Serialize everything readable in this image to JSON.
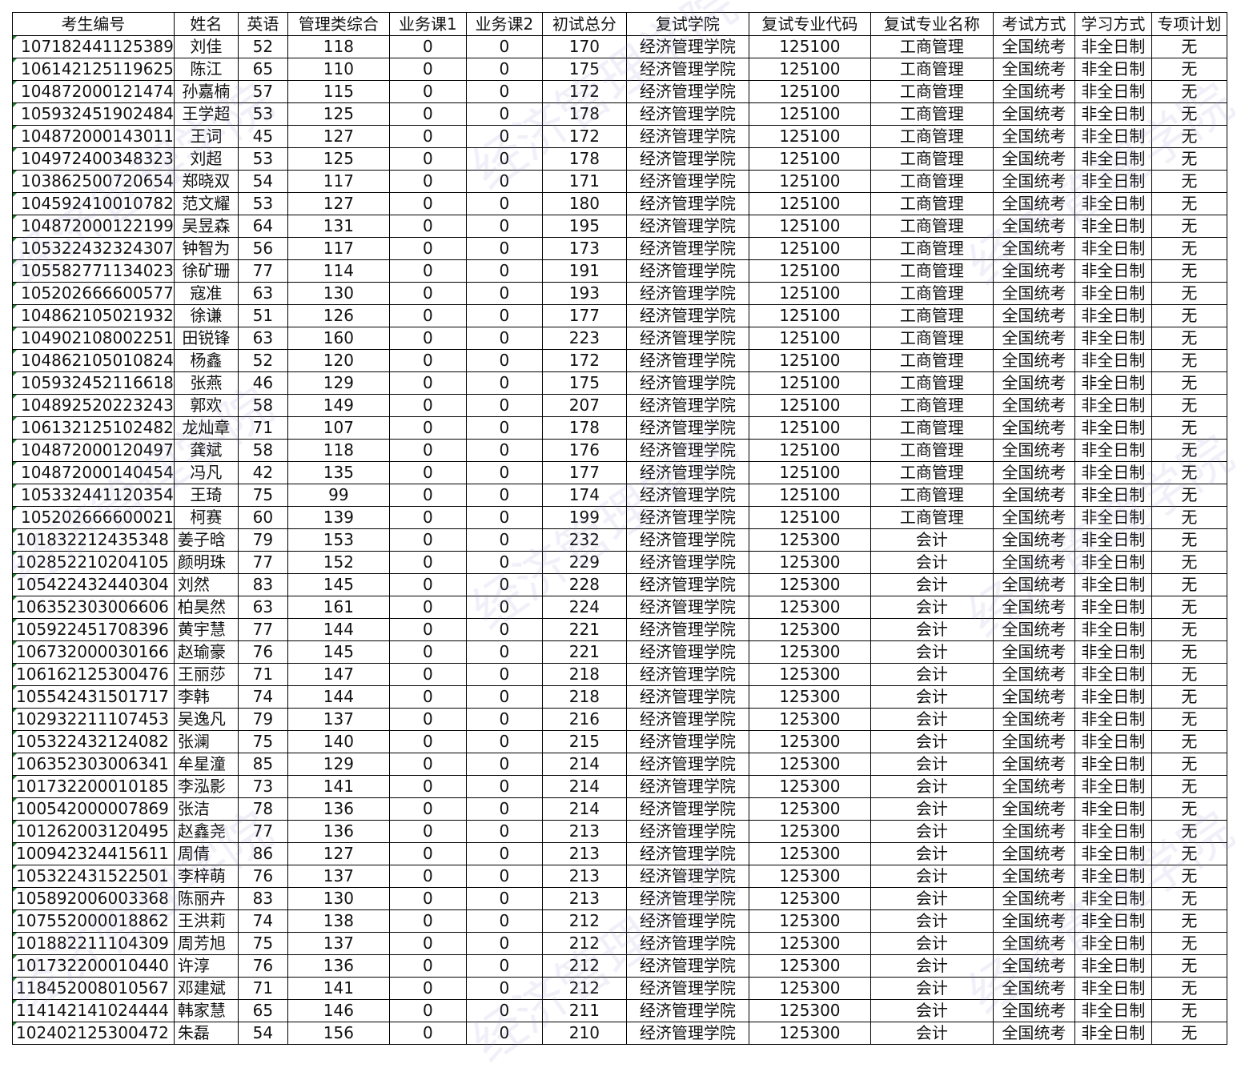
{
  "watermark": "经济管理学院",
  "headers": [
    "考生编号",
    "姓名",
    "英语",
    "管理类综合",
    "业务课1",
    "业务课2",
    "初试总分",
    "复试学院",
    "复试专业代码",
    "复试专业名称",
    "考试方式",
    "学习方式",
    "专项计划"
  ],
  "rows": [
    [
      "107182441125389",
      "刘佳",
      "52",
      "118",
      "0",
      "0",
      "170",
      "经济管理学院",
      "125100",
      "工商管理",
      "全国统考",
      "非全日制",
      "无"
    ],
    [
      "106142125119625",
      "陈江",
      "65",
      "110",
      "0",
      "0",
      "175",
      "经济管理学院",
      "125100",
      "工商管理",
      "全国统考",
      "非全日制",
      "无"
    ],
    [
      "104872000121474",
      "孙嘉楠",
      "57",
      "115",
      "0",
      "0",
      "172",
      "经济管理学院",
      "125100",
      "工商管理",
      "全国统考",
      "非全日制",
      "无"
    ],
    [
      "105932451902484",
      "王学超",
      "53",
      "125",
      "0",
      "0",
      "178",
      "经济管理学院",
      "125100",
      "工商管理",
      "全国统考",
      "非全日制",
      "无"
    ],
    [
      "104872000143011",
      "王词",
      "45",
      "127",
      "0",
      "0",
      "172",
      "经济管理学院",
      "125100",
      "工商管理",
      "全国统考",
      "非全日制",
      "无"
    ],
    [
      "104972400348323",
      "刘超",
      "53",
      "125",
      "0",
      "0",
      "178",
      "经济管理学院",
      "125100",
      "工商管理",
      "全国统考",
      "非全日制",
      "无"
    ],
    [
      "103862500720654",
      "郑晓双",
      "54",
      "117",
      "0",
      "0",
      "171",
      "经济管理学院",
      "125100",
      "工商管理",
      "全国统考",
      "非全日制",
      "无"
    ],
    [
      "104592410010782",
      "范文耀",
      "53",
      "127",
      "0",
      "0",
      "180",
      "经济管理学院",
      "125100",
      "工商管理",
      "全国统考",
      "非全日制",
      "无"
    ],
    [
      "104872000122199",
      "吴昱森",
      "64",
      "131",
      "0",
      "0",
      "195",
      "经济管理学院",
      "125100",
      "工商管理",
      "全国统考",
      "非全日制",
      "无"
    ],
    [
      "105322432324307",
      "钟智为",
      "56",
      "117",
      "0",
      "0",
      "173",
      "经济管理学院",
      "125100",
      "工商管理",
      "全国统考",
      "非全日制",
      "无"
    ],
    [
      "105582771134023",
      "徐矿珊",
      "77",
      "114",
      "0",
      "0",
      "191",
      "经济管理学院",
      "125100",
      "工商管理",
      "全国统考",
      "非全日制",
      "无"
    ],
    [
      "105202666600577",
      "寇准",
      "63",
      "130",
      "0",
      "0",
      "193",
      "经济管理学院",
      "125100",
      "工商管理",
      "全国统考",
      "非全日制",
      "无"
    ],
    [
      "104862105021932",
      "徐谦",
      "51",
      "126",
      "0",
      "0",
      "177",
      "经济管理学院",
      "125100",
      "工商管理",
      "全国统考",
      "非全日制",
      "无"
    ],
    [
      "104902108002251",
      "田锐锋",
      "63",
      "160",
      "0",
      "0",
      "223",
      "经济管理学院",
      "125100",
      "工商管理",
      "全国统考",
      "非全日制",
      "无"
    ],
    [
      "104862105010824",
      "杨鑫",
      "52",
      "120",
      "0",
      "0",
      "172",
      "经济管理学院",
      "125100",
      "工商管理",
      "全国统考",
      "非全日制",
      "无"
    ],
    [
      "105932452116618",
      "张燕",
      "46",
      "129",
      "0",
      "0",
      "175",
      "经济管理学院",
      "125100",
      "工商管理",
      "全国统考",
      "非全日制",
      "无"
    ],
    [
      "104892520223243",
      "郭欢",
      "58",
      "149",
      "0",
      "0",
      "207",
      "经济管理学院",
      "125100",
      "工商管理",
      "全国统考",
      "非全日制",
      "无"
    ],
    [
      "106132125102482",
      "龙灿章",
      "71",
      "107",
      "0",
      "0",
      "178",
      "经济管理学院",
      "125100",
      "工商管理",
      "全国统考",
      "非全日制",
      "无"
    ],
    [
      "104872000120497",
      "龚斌",
      "58",
      "118",
      "0",
      "0",
      "176",
      "经济管理学院",
      "125100",
      "工商管理",
      "全国统考",
      "非全日制",
      "无"
    ],
    [
      "104872000140454",
      "冯凡",
      "42",
      "135",
      "0",
      "0",
      "177",
      "经济管理学院",
      "125100",
      "工商管理",
      "全国统考",
      "非全日制",
      "无"
    ],
    [
      "105332441120354",
      "王琦",
      "75",
      "99",
      "0",
      "0",
      "174",
      "经济管理学院",
      "125100",
      "工商管理",
      "全国统考",
      "非全日制",
      "无"
    ],
    [
      "105202666600021",
      "柯赛",
      "60",
      "139",
      "0",
      "0",
      "199",
      "经济管理学院",
      "125100",
      "工商管理",
      "全国统考",
      "非全日制",
      "无"
    ],
    [
      "101832212435348",
      "姜子晗",
      "79",
      "153",
      "0",
      "0",
      "232",
      "经济管理学院",
      "125300",
      "会计",
      "全国统考",
      "非全日制",
      "无"
    ],
    [
      "102852210204105",
      "颜明珠",
      "77",
      "152",
      "0",
      "0",
      "229",
      "经济管理学院",
      "125300",
      "会计",
      "全国统考",
      "非全日制",
      "无"
    ],
    [
      "105422432440304",
      "刘然",
      "83",
      "145",
      "0",
      "0",
      "228",
      "经济管理学院",
      "125300",
      "会计",
      "全国统考",
      "非全日制",
      "无"
    ],
    [
      "106352303006606",
      "柏昊然",
      "63",
      "161",
      "0",
      "0",
      "224",
      "经济管理学院",
      "125300",
      "会计",
      "全国统考",
      "非全日制",
      "无"
    ],
    [
      "105922451708396",
      "黄宇慧",
      "77",
      "144",
      "0",
      "0",
      "221",
      "经济管理学院",
      "125300",
      "会计",
      "全国统考",
      "非全日制",
      "无"
    ],
    [
      "106732000030166",
      "赵瑜豪",
      "76",
      "145",
      "0",
      "0",
      "221",
      "经济管理学院",
      "125300",
      "会计",
      "全国统考",
      "非全日制",
      "无"
    ],
    [
      "106162125300476",
      "王丽莎",
      "71",
      "147",
      "0",
      "0",
      "218",
      "经济管理学院",
      "125300",
      "会计",
      "全国统考",
      "非全日制",
      "无"
    ],
    [
      "105542431501717",
      "李韩",
      "74",
      "144",
      "0",
      "0",
      "218",
      "经济管理学院",
      "125300",
      "会计",
      "全国统考",
      "非全日制",
      "无"
    ],
    [
      "102932211107453",
      "吴逸凡",
      "79",
      "137",
      "0",
      "0",
      "216",
      "经济管理学院",
      "125300",
      "会计",
      "全国统考",
      "非全日制",
      "无"
    ],
    [
      "105322432124082",
      "张澜",
      "75",
      "140",
      "0",
      "0",
      "215",
      "经济管理学院",
      "125300",
      "会计",
      "全国统考",
      "非全日制",
      "无"
    ],
    [
      "106352303006341",
      "牟星潼",
      "85",
      "129",
      "0",
      "0",
      "214",
      "经济管理学院",
      "125300",
      "会计",
      "全国统考",
      "非全日制",
      "无"
    ],
    [
      "101732200010185",
      "李泓影",
      "73",
      "141",
      "0",
      "0",
      "214",
      "经济管理学院",
      "125300",
      "会计",
      "全国统考",
      "非全日制",
      "无"
    ],
    [
      "100542000007869",
      "张洁",
      "78",
      "136",
      "0",
      "0",
      "214",
      "经济管理学院",
      "125300",
      "会计",
      "全国统考",
      "非全日制",
      "无"
    ],
    [
      "101262003120495",
      "赵鑫尧",
      "77",
      "136",
      "0",
      "0",
      "213",
      "经济管理学院",
      "125300",
      "会计",
      "全国统考",
      "非全日制",
      "无"
    ],
    [
      "100942324415611",
      "周倩",
      "86",
      "127",
      "0",
      "0",
      "213",
      "经济管理学院",
      "125300",
      "会计",
      "全国统考",
      "非全日制",
      "无"
    ],
    [
      "105322431522501",
      "李梓萌",
      "76",
      "137",
      "0",
      "0",
      "213",
      "经济管理学院",
      "125300",
      "会计",
      "全国统考",
      "非全日制",
      "无"
    ],
    [
      "105892006003368",
      "陈丽卉",
      "83",
      "130",
      "0",
      "0",
      "213",
      "经济管理学院",
      "125300",
      "会计",
      "全国统考",
      "非全日制",
      "无"
    ],
    [
      "107552000018862",
      "王洪莉",
      "74",
      "138",
      "0",
      "0",
      "212",
      "经济管理学院",
      "125300",
      "会计",
      "全国统考",
      "非全日制",
      "无"
    ],
    [
      "101882211104309",
      "周芳旭",
      "75",
      "137",
      "0",
      "0",
      "212",
      "经济管理学院",
      "125300",
      "会计",
      "全国统考",
      "非全日制",
      "无"
    ],
    [
      "101732200010440",
      "许淳",
      "76",
      "136",
      "0",
      "0",
      "212",
      "经济管理学院",
      "125300",
      "会计",
      "全国统考",
      "非全日制",
      "无"
    ],
    [
      "118452008010567",
      "邓建斌",
      "71",
      "141",
      "0",
      "0",
      "212",
      "经济管理学院",
      "125300",
      "会计",
      "全国统考",
      "非全日制",
      "无"
    ],
    [
      "114142141024444",
      "韩家慧",
      "65",
      "146",
      "0",
      "0",
      "211",
      "经济管理学院",
      "125300",
      "会计",
      "全国统考",
      "非全日制",
      "无"
    ],
    [
      "102402125300472",
      "朱磊",
      "54",
      "156",
      "0",
      "0",
      "210",
      "经济管理学院",
      "125300",
      "会计",
      "全国统考",
      "非全日制",
      "无"
    ]
  ]
}
